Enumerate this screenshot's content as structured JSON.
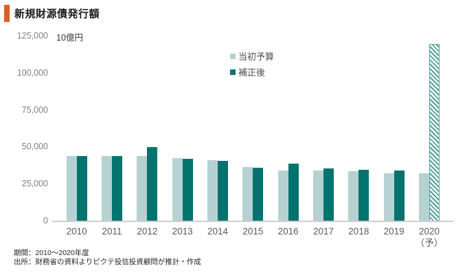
{
  "header": {
    "title": "新規財源債発行額",
    "accent_color": "#d2622a"
  },
  "chart_data": {
    "type": "bar",
    "title": "新規財源債発行額",
    "unit_label": "10億円",
    "categories": [
      "2010",
      "2011",
      "2012",
      "2013",
      "2014",
      "2015",
      "2016",
      "2017",
      "2018",
      "2019",
      "2020"
    ],
    "last_category_note": "（予）",
    "series": [
      {
        "name": "当初予算",
        "color": "#b6d1d1",
        "values": [
          44300,
          44300,
          44200,
          42900,
          41300,
          36900,
          34400,
          34400,
          33700,
          32700,
          32600
        ]
      },
      {
        "name": "補正後",
        "color": "#00736f",
        "values": [
          44300,
          44300,
          50000,
          42500,
          40900,
          36300,
          39000,
          35600,
          34900,
          34600,
          120000
        ]
      }
    ],
    "forecast_index": 10,
    "forecast_style": "hatched",
    "ylim": [
      0,
      125000
    ],
    "yticks": [
      0,
      25000,
      50000,
      75000,
      100000,
      125000
    ],
    "grid": false,
    "legend_position": "top-center"
  },
  "footer": {
    "period": "期間：2010～2020年度",
    "source": "出所：財務省の資料よりピクテ投信投資顧問が推計・作成"
  }
}
